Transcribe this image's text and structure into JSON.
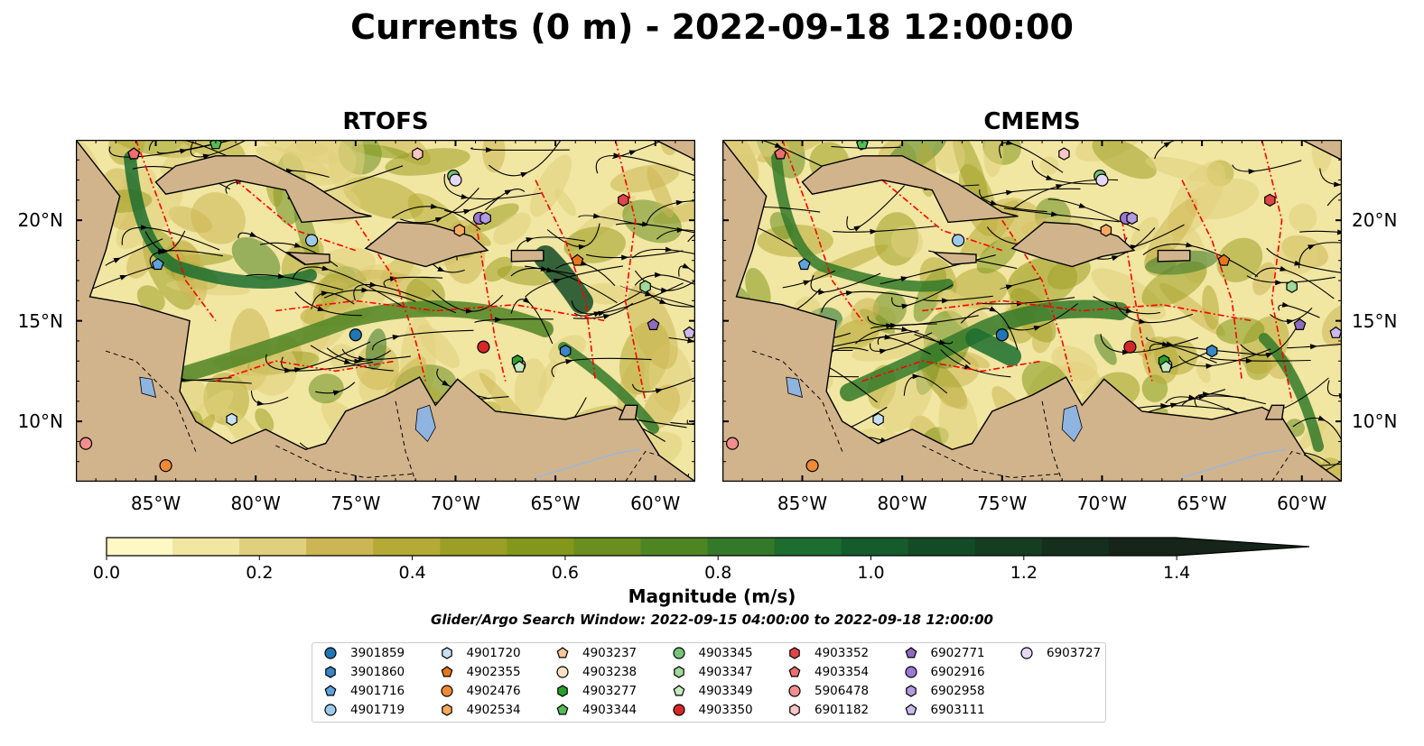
{
  "title": "Currents (0 m) - 2022-09-18 12:00:00",
  "panels": [
    {
      "title": "RTOFS"
    },
    {
      "title": "CMEMS"
    }
  ],
  "lon_ticks": [
    "85°W",
    "80°W",
    "75°W",
    "70°W",
    "65°W",
    "60°W"
  ],
  "lat_ticks": [
    "20°N",
    "15°N",
    "10°N"
  ],
  "colorbar": {
    "label": "Magnitude (m/s)",
    "ticks": [
      "0.0",
      "0.2",
      "0.4",
      "0.6",
      "0.8",
      "1.0",
      "1.2",
      "1.4"
    ],
    "colors": [
      "#fdf8c4",
      "#f1e6a2",
      "#e0cf7c",
      "#ccb653",
      "#b5aa35",
      "#9c9f25",
      "#83981b",
      "#6a8e1f",
      "#4f8423",
      "#347929",
      "#1c6d2f",
      "#155b2c",
      "#134b27",
      "#143d22",
      "#152e1d",
      "#162419"
    ]
  },
  "search_window": "Glider/Argo Search Window: 2022-09-15 04:00:00 to 2022-09-18 12:00:00",
  "colors": {
    "land": "#d2b48c",
    "lake": "#8fb4e0",
    "stream": "#000000",
    "eez": "#ff0000"
  },
  "legend": [
    {
      "label": "3901859",
      "marker": "circle",
      "color": "#1f77b4"
    },
    {
      "label": "3901860",
      "marker": "hexagon",
      "color": "#3a86c8"
    },
    {
      "label": "4901716",
      "marker": "pentagon",
      "color": "#5fa2dd"
    },
    {
      "label": "4901719",
      "marker": "circle",
      "color": "#9ecae9"
    },
    {
      "label": "4901720",
      "marker": "hexagon",
      "color": "#c6e1f5"
    },
    {
      "label": "4902355",
      "marker": "pentagon",
      "color": "#e6761a"
    },
    {
      "label": "4902476",
      "marker": "circle",
      "color": "#f08a35"
    },
    {
      "label": "4902534",
      "marker": "hexagon",
      "color": "#f9a860"
    },
    {
      "label": "4903237",
      "marker": "pentagon",
      "color": "#fcc896"
    },
    {
      "label": "4903238",
      "marker": "circle",
      "color": "#fde0c5"
    },
    {
      "label": "4903277",
      "marker": "hexagon",
      "color": "#2ca02c"
    },
    {
      "label": "4903344",
      "marker": "pentagon",
      "color": "#55bb55"
    },
    {
      "label": "4903345",
      "marker": "circle",
      "color": "#74c476"
    },
    {
      "label": "4903347",
      "marker": "hexagon",
      "color": "#a1d99b"
    },
    {
      "label": "4903349",
      "marker": "pentagon",
      "color": "#c7e9c0"
    },
    {
      "label": "4903350",
      "marker": "circle",
      "color": "#d62728"
    },
    {
      "label": "4903352",
      "marker": "hexagon",
      "color": "#e04548"
    },
    {
      "label": "4903354",
      "marker": "pentagon",
      "color": "#ec6e70"
    },
    {
      "label": "5906478",
      "marker": "circle",
      "color": "#f28e8e"
    },
    {
      "label": "6901182",
      "marker": "hexagon",
      "color": "#f9c5c5"
    },
    {
      "label": "6902771",
      "marker": "pentagon",
      "color": "#8e6bbf"
    },
    {
      "label": "6902916",
      "marker": "circle",
      "color": "#9c79d0"
    },
    {
      "label": "6902958",
      "marker": "hexagon",
      "color": "#b49ae0"
    },
    {
      "label": "6903111",
      "marker": "pentagon",
      "color": "#cbb8ec"
    },
    {
      "label": "6903727",
      "marker": "circle",
      "color": "#e6d9f7"
    }
  ],
  "map_extent": {
    "lon": [
      -89,
      -58
    ],
    "lat": [
      7,
      24
    ]
  },
  "floats": [
    {
      "id": "3901859",
      "lon": -75,
      "lat": 14.3
    },
    {
      "id": "3901860",
      "lon": -64.5,
      "lat": 13.5
    },
    {
      "id": "4901716",
      "lon": -84.9,
      "lat": 17.8
    },
    {
      "id": "4901719",
      "lon": -77.2,
      "lat": 19.0
    },
    {
      "id": "4901720",
      "lon": -81.2,
      "lat": 10.1
    },
    {
      "id": "4902355",
      "lon": -63.9,
      "lat": 18.0
    },
    {
      "id": "4902476",
      "lon": -84.5,
      "lat": 7.8
    },
    {
      "id": "4902534",
      "lon": -69.8,
      "lat": 19.5
    },
    {
      "id": "4903237",
      "lon": -86.1,
      "lat": 23.3
    },
    {
      "id": "4903238",
      "lon": -66.8,
      "lat": 12.8
    },
    {
      "id": "4903277",
      "lon": -66.9,
      "lat": 13.0
    },
    {
      "id": "4903344",
      "lon": -82.0,
      "lat": 23.8
    },
    {
      "id": "4903345",
      "lon": -70.1,
      "lat": 22.2
    },
    {
      "id": "4903347",
      "lon": -60.5,
      "lat": 16.7
    },
    {
      "id": "4903349",
      "lon": -66.8,
      "lat": 12.7
    },
    {
      "id": "4903350",
      "lon": -68.6,
      "lat": 13.7
    },
    {
      "id": "4903352",
      "lon": -61.6,
      "lat": 21.0
    },
    {
      "id": "4903354",
      "lon": -86.1,
      "lat": 23.3
    },
    {
      "id": "5906478",
      "lon": -88.5,
      "lat": 8.9
    },
    {
      "id": "6901182",
      "lon": -71.9,
      "lat": 23.3
    },
    {
      "id": "6902771",
      "lon": -60.1,
      "lat": 14.8
    },
    {
      "id": "6902916",
      "lon": -68.8,
      "lat": 20.1
    },
    {
      "id": "6902958",
      "lon": -68.5,
      "lat": 20.1
    },
    {
      "id": "6903111",
      "lon": -58.3,
      "lat": 14.4
    },
    {
      "id": "6903727",
      "lon": -70.0,
      "lat": 22.0
    }
  ]
}
